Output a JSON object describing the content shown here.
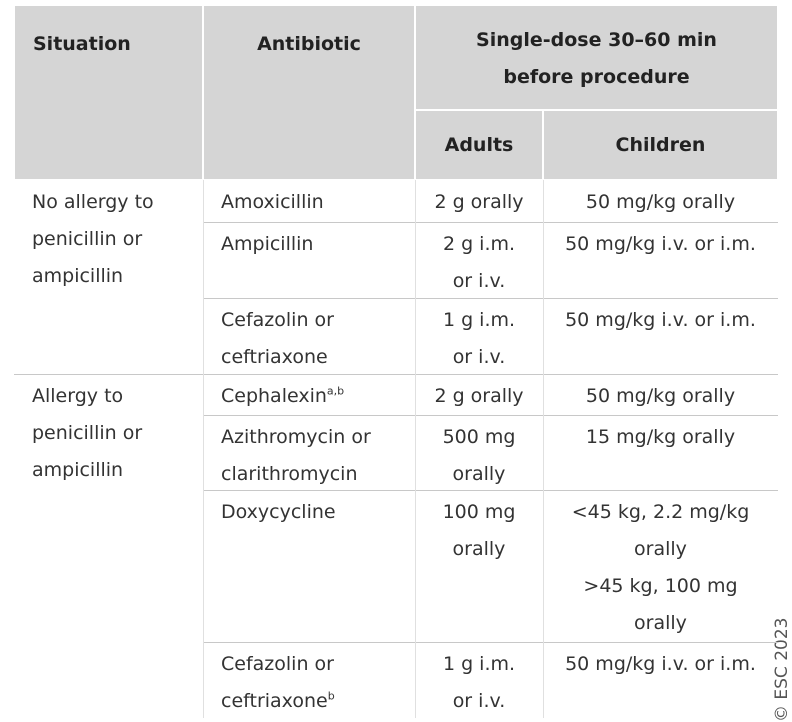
{
  "table": {
    "header": {
      "situation": "Situation",
      "antibiotic": "Antibiotic",
      "dose": [
        "Single-dose 30–60 min",
        "before procedure"
      ],
      "adults": "Adults",
      "children": "Children"
    },
    "groups": [
      {
        "situation": [
          "No allergy to",
          "penicillin or",
          "ampicillin"
        ],
        "rows": [
          {
            "antibiotic": [
              "Amoxicillin"
            ],
            "adults": [
              "2 g orally"
            ],
            "children": [
              "50 mg/kg orally"
            ]
          },
          {
            "antibiotic": [
              "Ampicillin"
            ],
            "adults": [
              "2 g i.m.",
              "or i.v."
            ],
            "children": [
              "50 mg/kg i.v. or i.m."
            ]
          },
          {
            "antibiotic": [
              "Cefazolin or",
              "ceftriaxone"
            ],
            "adults": [
              "1 g i.m.",
              "or i.v."
            ],
            "children": [
              "50 mg/kg i.v. or i.m."
            ]
          }
        ]
      },
      {
        "situation": [
          "Allergy to",
          "penicillin or",
          "ampicillin"
        ],
        "rows": [
          {
            "antibiotic": [
              "Cephalexin"
            ],
            "sup": "a,b",
            "adults": [
              "2 g orally"
            ],
            "children": [
              "50 mg/kg orally"
            ]
          },
          {
            "antibiotic": [
              "Azithromycin or",
              "clarithromycin"
            ],
            "adults": [
              "500 mg",
              "orally"
            ],
            "children": [
              "15 mg/kg orally"
            ]
          },
          {
            "antibiotic": [
              "Doxycycline"
            ],
            "adults": [
              "100 mg",
              "orally"
            ],
            "children": [
              "<45 kg, 2.2 mg/kg",
              "orally",
              ">45 kg, 100 mg",
              "orally"
            ]
          },
          {
            "antibiotic": [
              "Cefazolin or",
              "ceftriaxone"
            ],
            "sup": "b",
            "adults": [
              "1 g i.m.",
              "or i.v."
            ],
            "children": [
              "50 mg/kg i.v. or i.m."
            ]
          }
        ]
      }
    ]
  },
  "copyright": "© ESC 2023"
}
